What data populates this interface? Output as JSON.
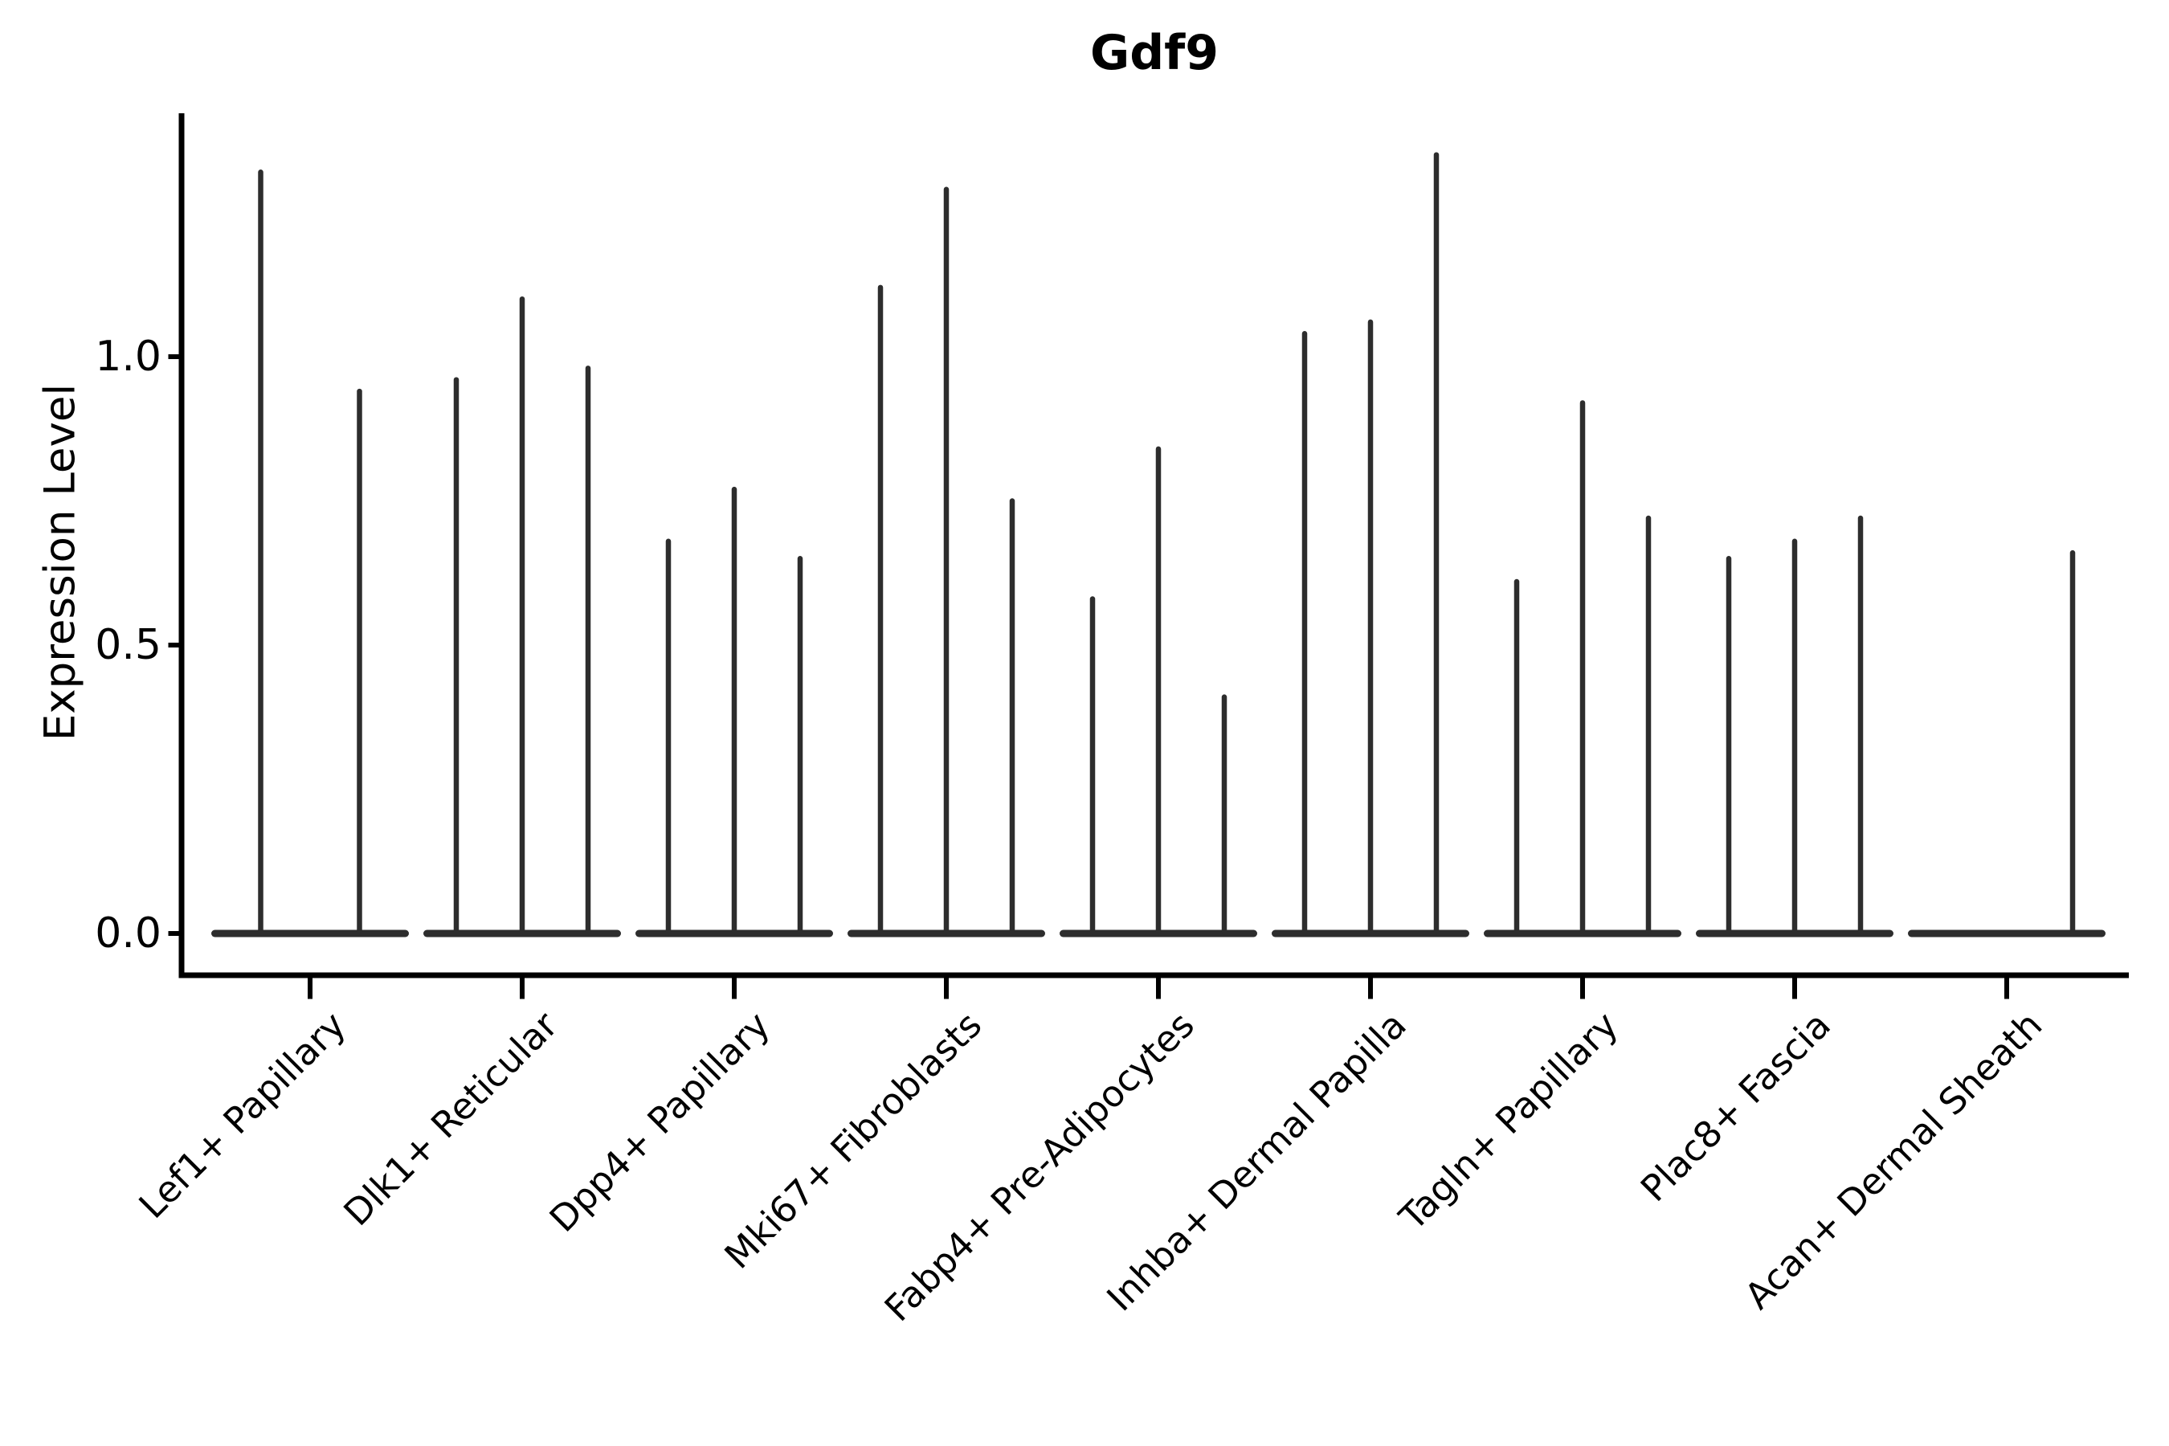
{
  "chart_data": {
    "type": "violin",
    "title": "Gdf9",
    "ylabel": "Expression Level",
    "xlabel": "",
    "yticks": [
      "0.0",
      "0.5",
      "1.0"
    ],
    "ytick_values": [
      0.0,
      0.5,
      1.0
    ],
    "ylim": [
      0.0,
      1.42
    ],
    "grid": false,
    "legend": false,
    "categories": [
      "Lef1+ Papillary",
      "Dlk1+ Reticular",
      "Dpp4+ Papillary",
      "Mki67+ Fibroblasts",
      "Fabp4+ Pre-Adipocytes",
      "Inhba+ Dermal Papilla",
      "Tagln+ Papillary",
      "Plac8+ Fascia",
      "Acan+ Dermal Sheath"
    ],
    "groups": [
      {
        "violin_maxima": [
          1.32,
          0.94
        ]
      },
      {
        "violin_maxima": [
          0.96,
          1.1,
          0.98
        ]
      },
      {
        "violin_maxima": [
          0.68,
          0.77,
          0.65
        ]
      },
      {
        "violin_maxima": [
          1.12,
          1.29,
          0.75
        ]
      },
      {
        "violin_maxima": [
          0.58,
          0.84,
          0.41
        ]
      },
      {
        "violin_maxima": [
          1.04,
          1.06,
          1.35
        ]
      },
      {
        "violin_maxima": [
          0.61,
          0.92,
          0.72
        ]
      },
      {
        "violin_maxima": [
          0.65,
          0.68,
          0.72
        ]
      },
      {
        "violin_maxima": [
          0.0,
          0.0,
          0.66
        ]
      }
    ],
    "violin_shape_note": "density concentrated at 0: wide flat base at y=0, thin needle to max",
    "colors": {
      "violin": "#2d2d2d",
      "axis": "#000000",
      "text": "#000000",
      "background": "#ffffff"
    }
  }
}
